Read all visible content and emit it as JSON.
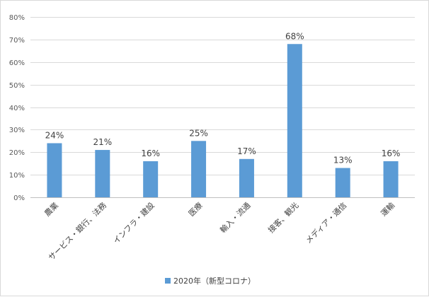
{
  "chart_data": {
    "type": "bar",
    "categories": [
      "農業",
      "サービス・銀行、法務",
      "インフラ・建設",
      "医療",
      "輸入・流通",
      "接客、観光",
      "メディア・通信",
      "運輸"
    ],
    "series": [
      {
        "name": "2020年（新型コロナ）",
        "values": [
          24,
          21,
          16,
          25,
          17,
          68,
          13,
          16
        ],
        "color": "#5b9bd5"
      }
    ],
    "value_suffix": "%",
    "ylim": [
      0,
      80
    ],
    "yticks": [
      0,
      10,
      20,
      30,
      40,
      50,
      60,
      70,
      80
    ],
    "grid": true,
    "legend_position": "bottom",
    "xlabel": "",
    "ylabel": ""
  }
}
